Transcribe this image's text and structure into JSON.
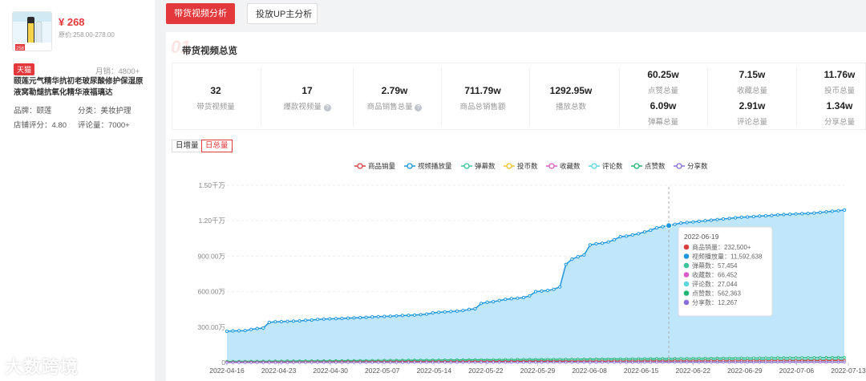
{
  "product": {
    "price": "¥ 268",
    "original_price": "原价:258.00-278.00",
    "shop_badge": "天猫",
    "monthly_sales": "月销：4800+",
    "title": "颐莲元气精华抗初老玻尿酸修护保湿原液窝勒煺抗氧化精华液福璃达",
    "brand_label": "品牌：",
    "brand": "颐莲",
    "category_label": "分类：",
    "category": "美妆护理",
    "shop_score_label": "店铺评分：",
    "shop_score": "4.80",
    "reviews_label": "评论量：",
    "reviews": "7000+",
    "image_badge": "258"
  },
  "tabs": {
    "active": "带货视频分析",
    "inactive": "投放UP主分析"
  },
  "section": {
    "number": "01",
    "title": "带货视频总览"
  },
  "stats": [
    {
      "value": "32",
      "label": "带货视频量",
      "help": false
    },
    {
      "value": "17",
      "label": "爆款视频量",
      "help": true
    },
    {
      "value": "2.79w",
      "label": "商品销售总量",
      "help": true
    },
    {
      "value": "711.79w",
      "label": "商品总销售额",
      "help": false
    },
    {
      "value": "1292.95w",
      "label": "播放总数",
      "help": false
    }
  ],
  "stats_grid": [
    {
      "value": "60.25w",
      "label": "点赞总量"
    },
    {
      "value": "7.15w",
      "label": "收藏总量"
    },
    {
      "value": "11.76w",
      "label": "投币总量"
    },
    {
      "value": "6.09w",
      "label": "弹幕总量"
    },
    {
      "value": "2.91w",
      "label": "评论总量"
    },
    {
      "value": "1.34w",
      "label": "分享总量"
    }
  ],
  "toggles": {
    "daily": "日增量",
    "total": "日总量"
  },
  "help_glyph": "?",
  "brand_watermark": "大数跨境",
  "chart_data": {
    "type": "area",
    "legend": [
      "商品销量",
      "视频播放量",
      "弹幕数",
      "投币数",
      "收藏数",
      "评论数",
      "点赞数",
      "分享数"
    ],
    "colors": {
      "商品销量": "#d94040",
      "视频播放量": "#1f97de",
      "弹幕数": "#3ec49a",
      "投币数": "#f2c230",
      "收藏数": "#d95cc7",
      "评论数": "#5ed6e0",
      "点赞数": "#22b573",
      "分享数": "#8a6fd9"
    },
    "y_ticks": [
      "0",
      "300.00万",
      "600.00万",
      "900.00万",
      "1.20千万",
      "1.50千万"
    ],
    "ylim": [
      0,
      15000000
    ],
    "x_ticks": [
      "2022-04-16",
      "2022-04-23",
      "2022-04-30",
      "2022-05-07",
      "2022-05-14",
      "2022-05-22",
      "2022-05-29",
      "2022-06-08",
      "2022-06-15",
      "2022-06-22",
      "2022-06-29",
      "2022-07-06",
      "2022-07-13"
    ],
    "plays": [
      2650000,
      2680000,
      2690000,
      2700000,
      2800000,
      2880000,
      2920000,
      3400000,
      3450000,
      3460000,
      3480000,
      3500000,
      3520000,
      3580000,
      3600000,
      3650000,
      3680000,
      3700000,
      3710000,
      3730000,
      3760000,
      3780000,
      3800000,
      3830000,
      3860000,
      3880000,
      3900000,
      3920000,
      3950000,
      3980000,
      4000000,
      4020000,
      4050000,
      4100000,
      4200000,
      4250000,
      4280000,
      4320000,
      4350000,
      4400000,
      4500000,
      4550000,
      5000000,
      5100000,
      5150000,
      5250000,
      5350000,
      5400000,
      5450000,
      5500000,
      5650000,
      6000000,
      6050000,
      6100000,
      6200000,
      6400000,
      8300000,
      8750000,
      8950000,
      9100000,
      9950000,
      10050000,
      10100000,
      10200000,
      10400000,
      10650000,
      10700000,
      10800000,
      10900000,
      11050000,
      11200000,
      11400000,
      11500000,
      11592638,
      11700000,
      11800000,
      11850000,
      11900000,
      11950000,
      12000000,
      12050000,
      12100000,
      12150000,
      12200000,
      12250000,
      12300000,
      12320000,
      12350000,
      12400000,
      12420000,
      12450000,
      12500000,
      12520000,
      12550000,
      12580000,
      12600000,
      12620000,
      12650000,
      12700000,
      12750000,
      12800000,
      12850000,
      12900000
    ],
    "tooltip": {
      "date": "2022-06-19",
      "index": 73,
      "items": [
        {
          "name": "商品销量",
          "value": "232,500+"
        },
        {
          "name": "视频播放量",
          "value": "11,592,638"
        },
        {
          "name": "弹幕数",
          "value": "57,454"
        },
        {
          "name": "收藏数",
          "value": "66,452"
        },
        {
          "name": "评论数",
          "value": "27,044"
        },
        {
          "name": "点赞数",
          "value": "562,363"
        },
        {
          "name": "分享数",
          "value": "12,267"
        }
      ]
    }
  }
}
